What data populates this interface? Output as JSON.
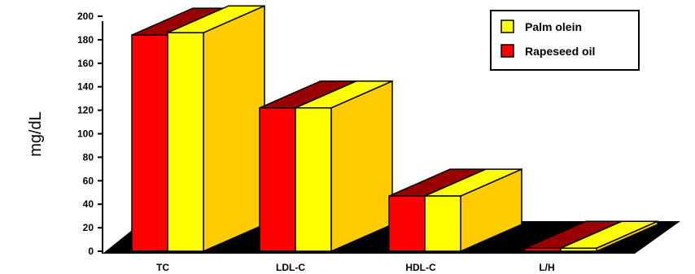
{
  "chart_data": {
    "type": "bar",
    "style": "3d-clustered",
    "title": "",
    "xlabel": "",
    "ylabel": "mg/dL",
    "ylim": [
      0,
      200
    ],
    "yticks": [
      0,
      20,
      40,
      60,
      80,
      100,
      120,
      140,
      160,
      180,
      200
    ],
    "categories": [
      "TC",
      "LDL-C",
      "HDL-C",
      "L/H"
    ],
    "series": [
      {
        "name": "Rapeseed oil",
        "values": [
          184,
          122,
          47,
          2.6
        ],
        "color": "#ff0000",
        "top_color": "#990000"
      },
      {
        "name": "Palm olein",
        "values": [
          186,
          122,
          47,
          2.6
        ],
        "color": "#ffff00",
        "top_color": "#ffff00",
        "side_color": "#ffcc00"
      }
    ],
    "legend": {
      "placement": "top-right",
      "entries": [
        "Palm olein",
        "Rapeseed oil"
      ]
    },
    "floor_color": "#000000",
    "grid": false
  }
}
